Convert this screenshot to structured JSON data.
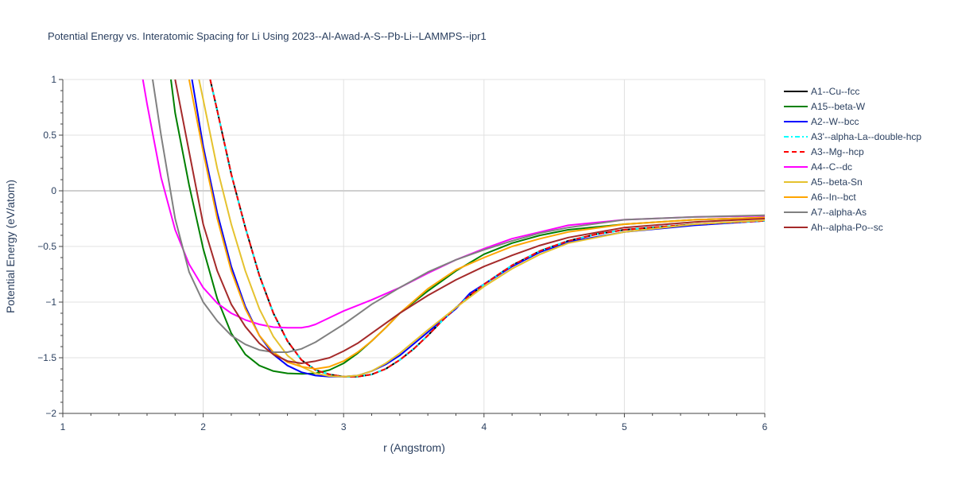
{
  "chart_data": {
    "type": "line",
    "title": "Potential Energy vs. Interatomic Spacing for Li Using 2023--Al-Awad-A-S--Pb-Li--LAMMPS--ipr1",
    "xlabel": "r (Angstrom)",
    "ylabel": "Potential Energy (eV/atom)",
    "xlim": [
      1,
      6
    ],
    "ylim": [
      -2,
      1
    ],
    "xticks": [
      1,
      2,
      3,
      4,
      5,
      6
    ],
    "xtick_labels": [
      "1",
      "2",
      "3",
      "4",
      "5",
      "6"
    ],
    "yticks": [
      -2,
      -1.5,
      -1,
      -0.5,
      0,
      0.5,
      1
    ],
    "ytick_labels": [
      "−2",
      "−1.5",
      "−1",
      "−0.5",
      "0",
      "0.5",
      "1"
    ],
    "grid": true,
    "legend_position": "right",
    "series": [
      {
        "name": "A1--Cu--fcc",
        "color": "#000000",
        "dash": "solid",
        "x": [
          2.05,
          2.1,
          2.2,
          2.3,
          2.4,
          2.5,
          2.6,
          2.7,
          2.8,
          2.9,
          3.0,
          3.1,
          3.2,
          3.3,
          3.4,
          3.5,
          3.6,
          3.7,
          3.8,
          3.9,
          4.0,
          4.2,
          4.4,
          4.6,
          4.8,
          5.0,
          5.5,
          6.0
        ],
        "y": [
          1.0,
          0.72,
          0.15,
          -0.33,
          -0.76,
          -1.1,
          -1.35,
          -1.52,
          -1.61,
          -1.65,
          -1.67,
          -1.67,
          -1.65,
          -1.6,
          -1.52,
          -1.42,
          -1.3,
          -1.17,
          -1.05,
          -0.94,
          -0.84,
          -0.67,
          -0.54,
          -0.45,
          -0.39,
          -0.35,
          -0.3,
          -0.27
        ]
      },
      {
        "name": "A15--beta-W",
        "color": "#008000",
        "dash": "solid",
        "x": [
          1.77,
          1.8,
          1.9,
          2.0,
          2.1,
          2.2,
          2.3,
          2.4,
          2.5,
          2.6,
          2.7,
          2.8,
          2.9,
          3.0,
          3.1,
          3.2,
          3.3,
          3.4,
          3.6,
          3.8,
          4.0,
          4.2,
          4.4,
          4.6,
          5.0,
          5.5,
          6.0
        ],
        "y": [
          1.0,
          0.7,
          0.05,
          -0.52,
          -0.97,
          -1.28,
          -1.47,
          -1.57,
          -1.62,
          -1.64,
          -1.645,
          -1.64,
          -1.61,
          -1.55,
          -1.46,
          -1.35,
          -1.23,
          -1.1,
          -0.9,
          -0.72,
          -0.57,
          -0.47,
          -0.4,
          -0.35,
          -0.3,
          -0.26,
          -0.24
        ]
      },
      {
        "name": "A2--W--bcc",
        "color": "#0000ff",
        "dash": "solid",
        "x": [
          1.92,
          2.0,
          2.1,
          2.2,
          2.3,
          2.4,
          2.5,
          2.6,
          2.7,
          2.8,
          2.9,
          3.0,
          3.1,
          3.2,
          3.3,
          3.4,
          3.6,
          3.8,
          3.9,
          4.0,
          4.2,
          4.4,
          4.6,
          5.0,
          5.5,
          6.0
        ],
        "y": [
          1.0,
          0.4,
          -0.2,
          -0.68,
          -1.04,
          -1.3,
          -1.47,
          -1.57,
          -1.63,
          -1.66,
          -1.67,
          -1.67,
          -1.66,
          -1.62,
          -1.56,
          -1.48,
          -1.27,
          -1.06,
          -0.92,
          -0.84,
          -0.68,
          -0.55,
          -0.46,
          -0.37,
          -0.31,
          -0.27
        ]
      },
      {
        "name": "A3'--alpha-La--double-hcp",
        "color": "#00ffff",
        "dash": "dashdot",
        "x": [
          2.05,
          2.1,
          2.2,
          2.3,
          2.4,
          2.5,
          2.6,
          2.7,
          2.8,
          2.9,
          3.0,
          3.1,
          3.2,
          3.3,
          3.4,
          3.5,
          3.6,
          3.7,
          3.8,
          3.9,
          4.0,
          4.2,
          4.4,
          4.6,
          4.8,
          5.0,
          5.5,
          6.0
        ],
        "y": [
          1.0,
          0.72,
          0.15,
          -0.33,
          -0.76,
          -1.1,
          -1.35,
          -1.52,
          -1.61,
          -1.65,
          -1.67,
          -1.67,
          -1.65,
          -1.6,
          -1.52,
          -1.42,
          -1.3,
          -1.17,
          -1.05,
          -0.94,
          -0.84,
          -0.67,
          -0.54,
          -0.45,
          -0.39,
          -0.35,
          -0.3,
          -0.27
        ]
      },
      {
        "name": "A3--Mg--hcp",
        "color": "#ff0000",
        "dash": "dash",
        "x": [
          2.05,
          2.1,
          2.2,
          2.3,
          2.4,
          2.5,
          2.6,
          2.7,
          2.8,
          2.9,
          3.0,
          3.1,
          3.2,
          3.3,
          3.4,
          3.5,
          3.6,
          3.7,
          3.8,
          3.9,
          4.0,
          4.2,
          4.4,
          4.6,
          4.8,
          5.0,
          5.5,
          6.0
        ],
        "y": [
          1.0,
          0.72,
          0.15,
          -0.33,
          -0.76,
          -1.1,
          -1.35,
          -1.52,
          -1.61,
          -1.65,
          -1.67,
          -1.67,
          -1.65,
          -1.6,
          -1.52,
          -1.42,
          -1.3,
          -1.17,
          -1.05,
          -0.94,
          -0.84,
          -0.67,
          -0.54,
          -0.45,
          -0.39,
          -0.35,
          -0.3,
          -0.27
        ]
      },
      {
        "name": "A4--C--dc",
        "color": "#ff00ff",
        "dash": "solid",
        "x": [
          1.57,
          1.6,
          1.7,
          1.8,
          1.9,
          2.0,
          2.1,
          2.2,
          2.3,
          2.4,
          2.5,
          2.6,
          2.7,
          2.75,
          2.8,
          2.9,
          3.0,
          3.2,
          3.4,
          3.6,
          3.8,
          4.0,
          4.2,
          4.4,
          4.6,
          5.0,
          5.5,
          6.0
        ],
        "y": [
          1.0,
          0.78,
          0.12,
          -0.35,
          -0.66,
          -0.87,
          -1.01,
          -1.1,
          -1.16,
          -1.2,
          -1.225,
          -1.23,
          -1.23,
          -1.22,
          -1.2,
          -1.14,
          -1.08,
          -0.98,
          -0.87,
          -0.74,
          -0.62,
          -0.52,
          -0.43,
          -0.37,
          -0.31,
          -0.26,
          -0.235,
          -0.225
        ]
      },
      {
        "name": "A5--beta-Sn",
        "color": "#e5c22e",
        "dash": "solid",
        "x": [
          1.97,
          2.0,
          2.1,
          2.2,
          2.3,
          2.4,
          2.5,
          2.6,
          2.7,
          2.8,
          2.9,
          3.0,
          3.1,
          3.2,
          3.3,
          3.4,
          3.6,
          3.8,
          4.0,
          4.2,
          4.4,
          4.6,
          5.0,
          5.5,
          6.0
        ],
        "y": [
          1.0,
          0.82,
          0.2,
          -0.3,
          -0.72,
          -1.06,
          -1.31,
          -1.48,
          -1.58,
          -1.64,
          -1.665,
          -1.67,
          -1.66,
          -1.62,
          -1.55,
          -1.46,
          -1.25,
          -1.05,
          -0.86,
          -0.7,
          -0.57,
          -0.47,
          -0.37,
          -0.3,
          -0.265
        ]
      },
      {
        "name": "A6--In--bct",
        "color": "#ffa500",
        "dash": "solid",
        "x": [
          1.9,
          2.0,
          2.1,
          2.2,
          2.3,
          2.4,
          2.5,
          2.6,
          2.7,
          2.8,
          2.9,
          3.0,
          3.1,
          3.2,
          3.3,
          3.4,
          3.6,
          3.8,
          4.0,
          4.2,
          4.4,
          4.6,
          5.0,
          5.5,
          6.0
        ],
        "y": [
          1.0,
          0.35,
          -0.25,
          -0.72,
          -1.06,
          -1.3,
          -1.45,
          -1.54,
          -1.58,
          -1.6,
          -1.58,
          -1.53,
          -1.45,
          -1.35,
          -1.23,
          -1.1,
          -0.88,
          -0.71,
          -0.6,
          -0.5,
          -0.43,
          -0.37,
          -0.3,
          -0.26,
          -0.24
        ]
      },
      {
        "name": "A7--alpha-As",
        "color": "#808080",
        "dash": "solid",
        "x": [
          1.64,
          1.7,
          1.8,
          1.9,
          2.0,
          2.1,
          2.2,
          2.3,
          2.4,
          2.5,
          2.6,
          2.7,
          2.8,
          2.9,
          3.0,
          3.1,
          3.2,
          3.4,
          3.6,
          3.8,
          4.0,
          4.2,
          4.4,
          4.6,
          5.0,
          5.5,
          6.0
        ],
        "y": [
          1.0,
          0.5,
          -0.25,
          -0.73,
          -1.0,
          -1.17,
          -1.3,
          -1.38,
          -1.43,
          -1.45,
          -1.45,
          -1.42,
          -1.36,
          -1.28,
          -1.2,
          -1.11,
          -1.02,
          -0.87,
          -0.73,
          -0.62,
          -0.53,
          -0.45,
          -0.38,
          -0.33,
          -0.26,
          -0.235,
          -0.22
        ]
      },
      {
        "name": "Ah--alpha-Po--sc",
        "color": "#a52a2a",
        "dash": "solid",
        "x": [
          1.8,
          1.9,
          2.0,
          2.1,
          2.2,
          2.3,
          2.4,
          2.5,
          2.6,
          2.7,
          2.75,
          2.8,
          2.9,
          3.0,
          3.1,
          3.2,
          3.4,
          3.6,
          3.8,
          4.0,
          4.2,
          4.4,
          4.6,
          5.0,
          5.5,
          6.0
        ],
        "y": [
          1.0,
          0.35,
          -0.3,
          -0.72,
          -1.02,
          -1.22,
          -1.37,
          -1.47,
          -1.53,
          -1.55,
          -1.54,
          -1.53,
          -1.5,
          -1.44,
          -1.37,
          -1.28,
          -1.1,
          -0.94,
          -0.8,
          -0.68,
          -0.58,
          -0.49,
          -0.42,
          -0.33,
          -0.28,
          -0.25
        ]
      }
    ]
  }
}
